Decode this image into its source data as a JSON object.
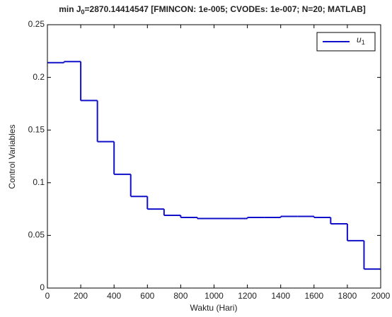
{
  "chart_data": {
    "type": "stairs",
    "title_parts": [
      "min J",
      "0",
      "=2870.14414547 [FMINCON: 1e-005; CVODEs: 1e-007; N=20; MATLAB]"
    ],
    "xlabel": "Waktu (Hari)",
    "ylabel": "Control Variables",
    "x": [
      0,
      100,
      200,
      300,
      400,
      500,
      600,
      700,
      800,
      900,
      1000,
      1100,
      1200,
      1300,
      1400,
      1500,
      1600,
      1700,
      1800,
      1900,
      2000
    ],
    "series": [
      {
        "name": "u",
        "name_subscript": "1",
        "color": "#1010c8",
        "values": [
          0.214,
          0.215,
          0.178,
          0.139,
          0.108,
          0.087,
          0.075,
          0.069,
          0.067,
          0.066,
          0.066,
          0.066,
          0.067,
          0.067,
          0.068,
          0.068,
          0.067,
          0.061,
          0.045,
          0.018,
          0.018
        ]
      }
    ],
    "xlim": [
      0,
      2000
    ],
    "xticks": [
      0,
      200,
      400,
      600,
      800,
      1000,
      1200,
      1400,
      1600,
      1800,
      2000
    ],
    "ylim": [
      0,
      0.25
    ],
    "yticks": [
      0,
      0.05,
      0.1,
      0.15,
      0.2,
      0.25
    ],
    "legend": "upper right",
    "grid": false
  }
}
